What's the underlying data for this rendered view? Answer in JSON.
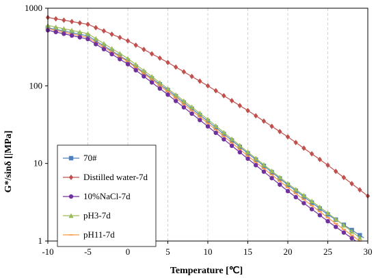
{
  "chart_data": {
    "type": "line",
    "xlabel": "Temperature [℃]",
    "ylabel": "G*/sinδ [|MPa]",
    "xlim": [
      -10,
      30
    ],
    "ylim": [
      1,
      1000
    ],
    "yscale": "log",
    "x_ticks": [
      "-10",
      "-5",
      "0",
      "5",
      "10",
      "15",
      "20",
      "25",
      "30"
    ],
    "y_ticks": [
      "1",
      "10",
      "100",
      "1000"
    ],
    "grid": "vertical dashed",
    "legend_position": "left",
    "series": [
      {
        "name": "70#",
        "color": "#4f81bd",
        "marker": "square",
        "x": [
          -10,
          -5,
          0,
          5,
          10,
          15,
          20,
          25,
          29.5
        ],
        "y": [
          560,
          440,
          210,
          88,
          35,
          13.5,
          5.3,
          2.2,
          1.1
        ]
      },
      {
        "name": "Distilled water-7d",
        "color": "#c0504d",
        "marker": "diamond",
        "x": [
          -10,
          -5,
          0,
          5,
          10,
          15,
          20,
          25,
          30
        ],
        "y": [
          760,
          620,
          380,
          200,
          100,
          48,
          22,
          9.5,
          3.8
        ]
      },
      {
        "name": "10%NaCl-7d",
        "color": "#7030a0",
        "marker": "circle",
        "x": [
          -10,
          -5,
          0,
          5,
          10,
          15,
          20,
          25,
          28.5
        ],
        "y": [
          520,
          400,
          190,
          77,
          30,
          11.5,
          4.4,
          1.8,
          1.0
        ]
      },
      {
        "name": "pH3-7d",
        "color": "#9bbb59",
        "marker": "triangle",
        "x": [
          -10,
          -5,
          0,
          5,
          10,
          15,
          20,
          25,
          29
        ],
        "y": [
          600,
          470,
          225,
          92,
          37,
          14,
          5.5,
          2.3,
          1.1
        ]
      },
      {
        "name": "pH11-7d",
        "color": "#f79646",
        "marker": "dash",
        "x": [
          -10,
          -5,
          0,
          5,
          10,
          15,
          20,
          25,
          29
        ],
        "y": [
          545,
          420,
          205,
          84,
          33,
          12.5,
          4.9,
          2.0,
          1.0
        ]
      }
    ]
  }
}
